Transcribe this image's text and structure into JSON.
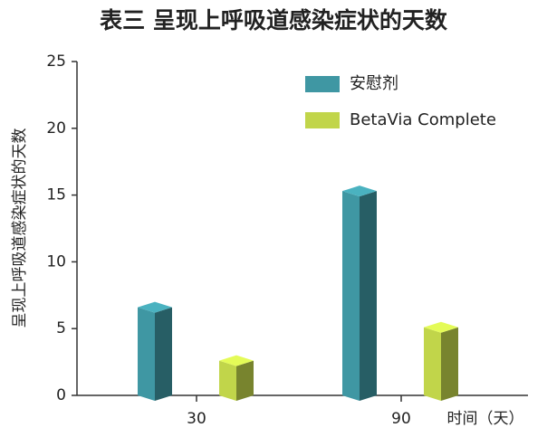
{
  "chart_data": {
    "type": "bar3d",
    "title": "表三 呈现上呼吸道感染症状的天数",
    "y_label": "呈现上呼吸道感染症状的天数",
    "x_label": "时间（天）",
    "categories": [
      "30",
      "90"
    ],
    "series": [
      {
        "name": "安慰剂",
        "color": "#3f97a3",
        "values": [
          6.6,
          15.3
        ]
      },
      {
        "name": "BetaVia Complete",
        "color": "#c1d54a",
        "values": [
          2.6,
          5.1
        ]
      }
    ],
    "ylim": [
      0,
      25
    ],
    "yticks": [
      0,
      5,
      10,
      15,
      20,
      25
    ]
  }
}
